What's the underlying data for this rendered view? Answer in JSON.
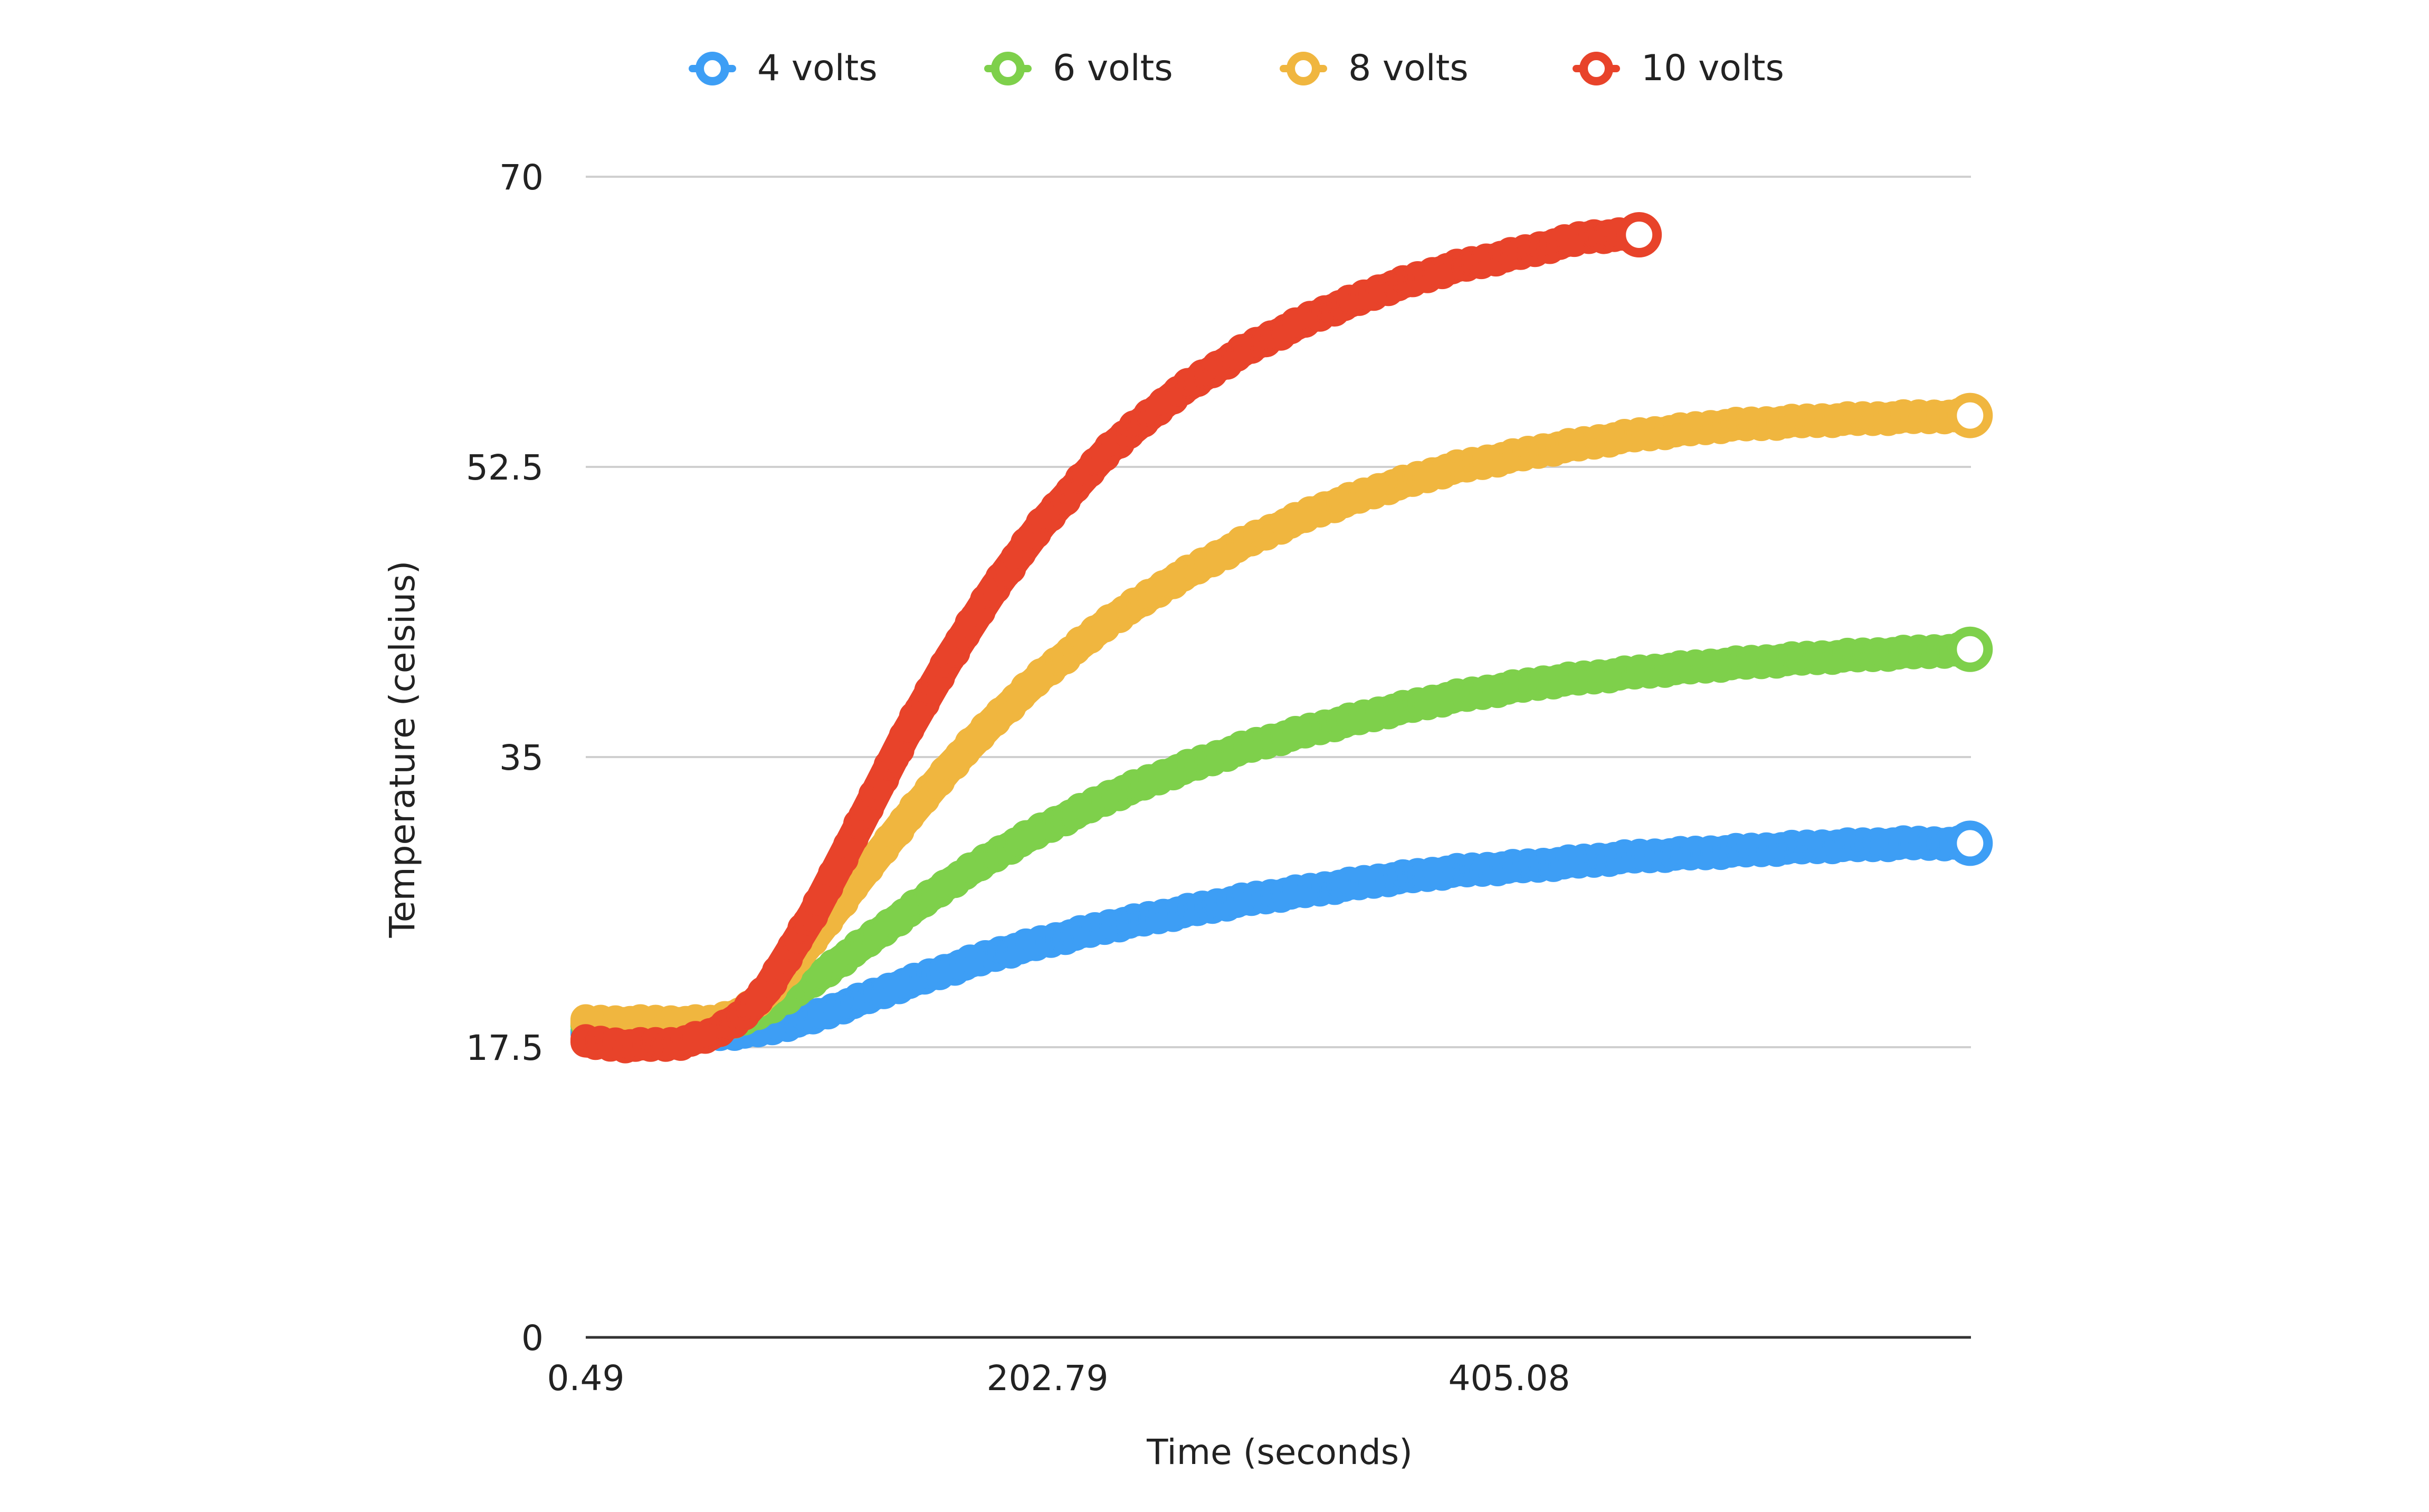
{
  "chart_data": {
    "type": "scatter",
    "xlabel": "Time (seconds)",
    "ylabel": "Temperature (celsius)",
    "xlim": [
      0.49,
      607.38
    ],
    "ylim": [
      0,
      70
    ],
    "x_ticks": [
      {
        "value": 0.49,
        "label": "0.49"
      },
      {
        "value": 202.79,
        "label": "202.79"
      },
      {
        "value": 405.08,
        "label": "405.08"
      }
    ],
    "y_ticks": [
      {
        "value": 0,
        "label": "0"
      },
      {
        "value": 17.5,
        "label": "17.5"
      },
      {
        "value": 35,
        "label": "35"
      },
      {
        "value": 52.5,
        "label": "52.5"
      },
      {
        "value": 70,
        "label": "70"
      }
    ],
    "grid": true,
    "legend_position": "top",
    "series": [
      {
        "name": "4 volts",
        "color": "#3D9EF5",
        "points": [
          [
            0.5,
            18.3
          ],
          [
            20,
            18.3
          ],
          [
            40,
            18.4
          ],
          [
            55,
            18.3
          ],
          [
            70,
            18.4
          ],
          [
            80,
            18.6
          ],
          [
            100,
            19.3
          ],
          [
            120,
            20.3
          ],
          [
            140,
            21.3
          ],
          [
            160,
            22.2
          ],
          [
            180,
            23.1
          ],
          [
            200,
            23.8
          ],
          [
            230,
            24.8
          ],
          [
            260,
            25.6
          ],
          [
            290,
            26.4
          ],
          [
            320,
            27.0
          ],
          [
            350,
            27.6
          ],
          [
            380,
            28.1
          ],
          [
            420,
            28.5
          ],
          [
            460,
            29.0
          ],
          [
            500,
            29.3
          ],
          [
            540,
            29.6
          ],
          [
            580,
            29.8
          ],
          [
            607,
            29.8
          ]
        ]
      },
      {
        "name": "6 volts",
        "color": "#7ED04B",
        "points": [
          [
            0.5,
            18.8
          ],
          [
            20,
            18.8
          ],
          [
            40,
            18.8
          ],
          [
            55,
            18.9
          ],
          [
            70,
            19.2
          ],
          [
            80,
            19.8
          ],
          [
            100,
            21.5
          ],
          [
            120,
            23.5
          ],
          [
            140,
            25.5
          ],
          [
            160,
            27.4
          ],
          [
            180,
            29.1
          ],
          [
            200,
            30.6
          ],
          [
            230,
            32.6
          ],
          [
            260,
            34.2
          ],
          [
            290,
            35.6
          ],
          [
            320,
            36.7
          ],
          [
            350,
            37.7
          ],
          [
            380,
            38.6
          ],
          [
            420,
            39.5
          ],
          [
            460,
            40.1
          ],
          [
            500,
            40.6
          ],
          [
            540,
            41.0
          ],
          [
            580,
            41.3
          ],
          [
            607,
            41.5
          ]
        ]
      },
      {
        "name": "8 volts",
        "color": "#F0B63F",
        "points": [
          [
            0.5,
            19.0
          ],
          [
            20,
            19.0
          ],
          [
            40,
            19.0
          ],
          [
            55,
            19.0
          ],
          [
            70,
            19.6
          ],
          [
            80,
            20.8
          ],
          [
            100,
            24.0
          ],
          [
            120,
            27.6
          ],
          [
            140,
            31.1
          ],
          [
            160,
            34.4
          ],
          [
            180,
            37.3
          ],
          [
            200,
            39.9
          ],
          [
            230,
            43.2
          ],
          [
            260,
            45.8
          ],
          [
            290,
            48.0
          ],
          [
            320,
            49.8
          ],
          [
            350,
            51.2
          ],
          [
            380,
            52.4
          ],
          [
            420,
            53.5
          ],
          [
            460,
            54.4
          ],
          [
            500,
            55.0
          ],
          [
            540,
            55.3
          ],
          [
            580,
            55.5
          ],
          [
            607,
            55.6
          ]
        ]
      },
      {
        "name": "10 volts",
        "color": "#E8432A",
        "points": [
          [
            0.5,
            17.8
          ],
          [
            20,
            17.6
          ],
          [
            40,
            17.7
          ],
          [
            55,
            18.2
          ],
          [
            70,
            19.5
          ],
          [
            80,
            21.0
          ],
          [
            100,
            25.5
          ],
          [
            120,
            30.8
          ],
          [
            140,
            36.2
          ],
          [
            160,
            41.0
          ],
          [
            180,
            45.3
          ],
          [
            200,
            49.0
          ],
          [
            230,
            53.6
          ],
          [
            260,
            57.0
          ],
          [
            290,
            59.6
          ],
          [
            320,
            61.6
          ],
          [
            350,
            63.2
          ],
          [
            380,
            64.5
          ],
          [
            410,
            65.4
          ],
          [
            440,
            66.4
          ],
          [
            462,
            66.5
          ]
        ]
      }
    ]
  }
}
